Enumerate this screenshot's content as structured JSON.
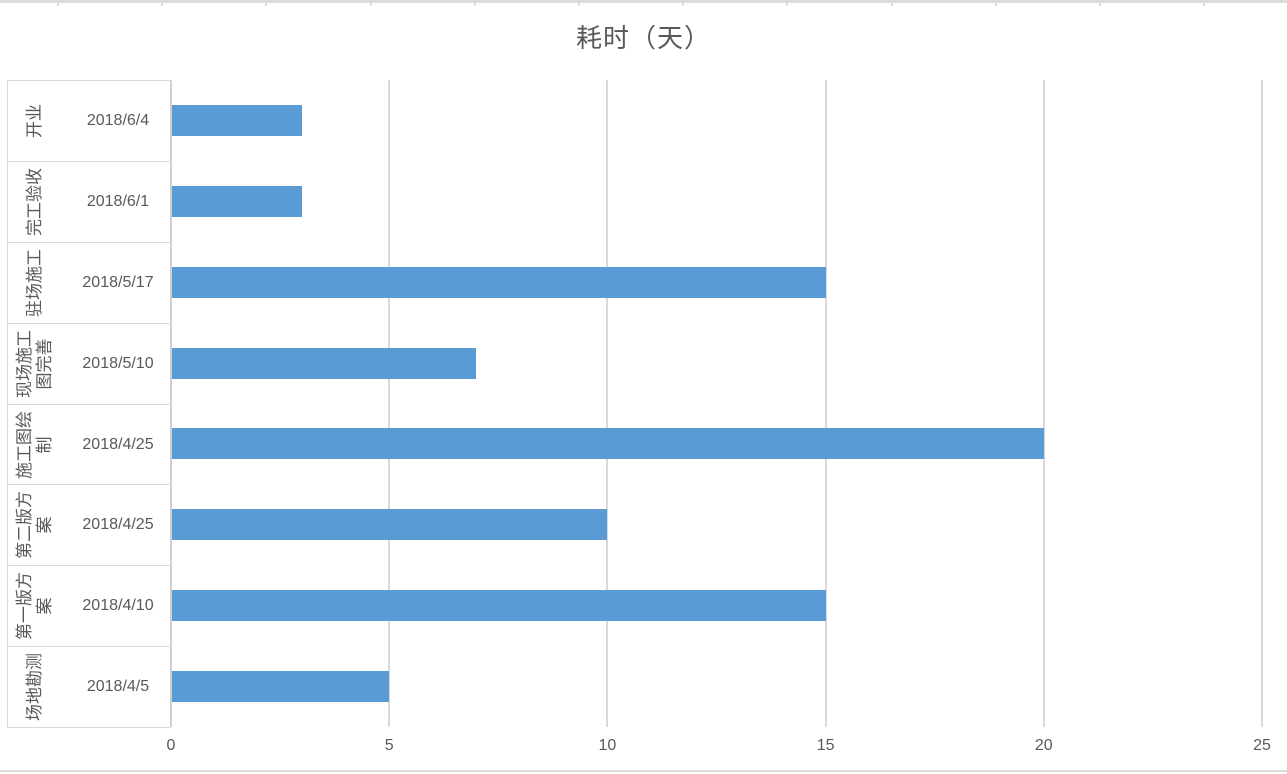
{
  "colors": {
    "bar": "#5b9bd5",
    "gridline": "#d9d9d9",
    "axis_line": "#d0d0d0",
    "text": "#595959"
  },
  "chart_data": {
    "type": "bar",
    "orientation": "horizontal",
    "title": "耗时（天）",
    "categories": [
      "开业",
      "完工验收",
      "驻场施工",
      "现场施工图完善",
      "施工图绘制",
      "第二版方案",
      "第一版方案",
      "场地勘测"
    ],
    "date_labels": [
      "2018/6/4",
      "2018/6/1",
      "2018/5/17",
      "2018/5/10",
      "2018/4/25",
      "2018/4/25",
      "2018/4/10",
      "2018/4/5"
    ],
    "series": [
      {
        "name": "耗时（天）",
        "values": [
          3,
          3,
          15,
          7,
          20,
          10,
          15,
          5
        ]
      }
    ],
    "xlim": [
      0,
      25
    ],
    "xticks": [
      0,
      5,
      10,
      15,
      20,
      25
    ],
    "grid": "vertical-major-only",
    "legend": "none"
  }
}
